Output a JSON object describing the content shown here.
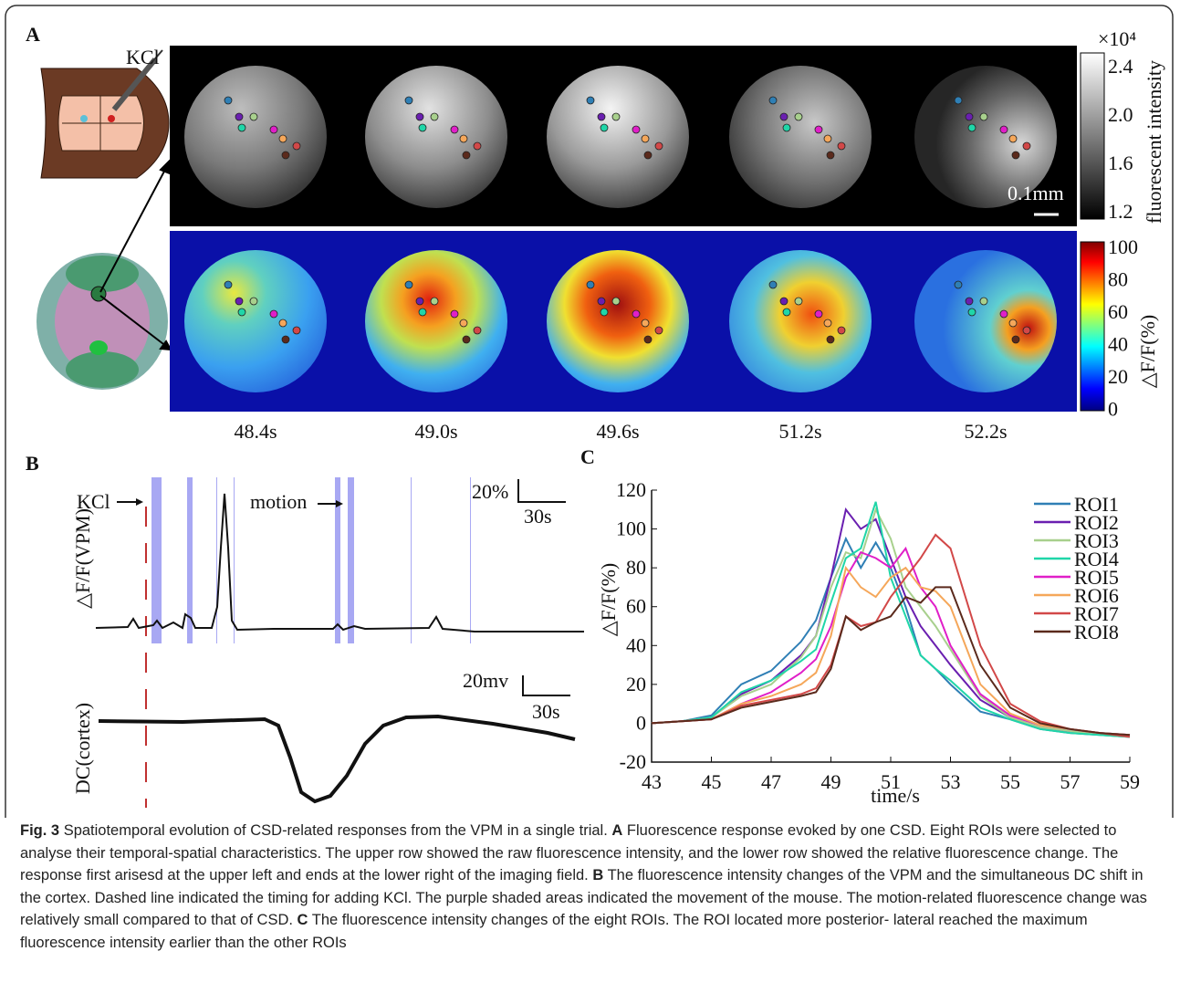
{
  "panel_a": {
    "label": "A",
    "kcl": "KCl",
    "colorbar_top": {
      "exponent": "×10⁴",
      "ticks": [
        "2.4",
        "2.0",
        "1.6",
        "1.2"
      ],
      "title": "fluorescent intensity"
    },
    "scale_bar": "0.1mm",
    "colorbar_bottom": {
      "ticks": [
        "100",
        "80",
        "60",
        "40",
        "20",
        "0"
      ],
      "title": "△F/F(%)"
    },
    "times": [
      "48.4s",
      "49.0s",
      "49.6s",
      "51.2s",
      "52.2s"
    ]
  },
  "panel_b": {
    "label": "B",
    "kcl": "KCl",
    "motion": "motion",
    "ylabel_top": "△F/F(VPM)",
    "scale_top_y": "20%",
    "scale_top_x": "30s",
    "ylabel_bottom": "DC(cortex)",
    "scale_bottom_y": "20mv",
    "scale_bottom_x": "30s"
  },
  "panel_c_label": "C",
  "chart_data": {
    "type": "line",
    "xlabel": "time/s",
    "ylabel": "△F/F(%)",
    "x": [
      43,
      44,
      45,
      46,
      47,
      48,
      48.5,
      49,
      49.5,
      50,
      50.5,
      51,
      51.5,
      52,
      52.5,
      53,
      54,
      55,
      56,
      57,
      58,
      59
    ],
    "series": [
      {
        "name": "ROI1",
        "color": "#2f7fb5",
        "values": [
          0,
          1,
          4,
          20,
          27,
          42,
          53,
          75,
          95,
          80,
          93,
          80,
          60,
          35,
          28,
          20,
          6,
          2,
          -3,
          -5,
          -6,
          -7
        ]
      },
      {
        "name": "ROI2",
        "color": "#6a1fb0",
        "values": [
          0,
          1,
          3,
          15,
          22,
          35,
          45,
          75,
          110,
          100,
          105,
          85,
          65,
          50,
          40,
          30,
          12,
          3,
          -2,
          -4,
          -5,
          -6
        ]
      },
      {
        "name": "ROI3",
        "color": "#a8d08d",
        "values": [
          0,
          1,
          3,
          14,
          20,
          34,
          45,
          70,
          88,
          85,
          110,
          95,
          70,
          60,
          50,
          38,
          14,
          3,
          -2,
          -4,
          -6,
          -7
        ]
      },
      {
        "name": "ROI4",
        "color": "#1fd6a8",
        "values": [
          0,
          1,
          3,
          16,
          22,
          32,
          38,
          62,
          85,
          90,
          114,
          75,
          55,
          35,
          28,
          22,
          8,
          2,
          -3,
          -5,
          -6,
          -7
        ]
      },
      {
        "name": "ROI5",
        "color": "#e01fc8",
        "values": [
          0,
          1,
          2,
          10,
          16,
          26,
          33,
          50,
          75,
          88,
          85,
          80,
          90,
          70,
          60,
          40,
          15,
          4,
          -1,
          -3,
          -5,
          -6
        ]
      },
      {
        "name": "ROI6",
        "color": "#f5a75a",
        "values": [
          0,
          1,
          2,
          10,
          14,
          20,
          26,
          45,
          80,
          70,
          65,
          75,
          80,
          70,
          68,
          60,
          20,
          5,
          -1,
          -3,
          -5,
          -6
        ]
      },
      {
        "name": "ROI7",
        "color": "#d24848",
        "values": [
          0,
          1,
          2,
          9,
          12,
          15,
          18,
          30,
          55,
          50,
          52,
          65,
          75,
          85,
          97,
          90,
          40,
          10,
          1,
          -3,
          -5,
          -7
        ]
      },
      {
        "name": "ROI8",
        "color": "#5b2a1c",
        "values": [
          0,
          1,
          2,
          8,
          11,
          14,
          16,
          28,
          55,
          48,
          52,
          55,
          65,
          62,
          70,
          70,
          30,
          8,
          0,
          -3,
          -5,
          -6
        ]
      }
    ],
    "xlim": [
      43,
      59
    ],
    "xticks": [
      43,
      45,
      47,
      49,
      51,
      53,
      55,
      57,
      59
    ],
    "ylim": [
      -20,
      120
    ],
    "yticks": [
      -20,
      0,
      20,
      40,
      60,
      80,
      100,
      120
    ],
    "legend": "upper right"
  },
  "caption": {
    "label": "Fig. 3",
    "intro": "Spatiotemporal evolution of CSD-related responses from the VPM in a single trial.",
    "a_label": "A",
    "a_text": "Fluorescence response evoked by one CSD. Eight ROIs were selected to analyse their temporal-spatial characteristics. The upper row showed the raw fluorescence intensity, and the lower row showed the relative fluorescence change. The response first arisesd at the upper left and ends at the lower right of the imaging field.",
    "b_label": "B",
    "b_text": "The fluorescence intensity changes of the VPM and the simultaneous DC shift in the cortex. Dashed line indicated the timing for adding KCl. The purple shaded areas indicated the movement of the mouse. The motion-related fluorescence change was relatively small compared to that of CSD.",
    "c_label": "C",
    "c_text": "The fluorescence intensity changes of the eight ROIs. The ROI located more posterior- lateral reached the maximum fluorescence intensity earlier than the other ROIs"
  }
}
